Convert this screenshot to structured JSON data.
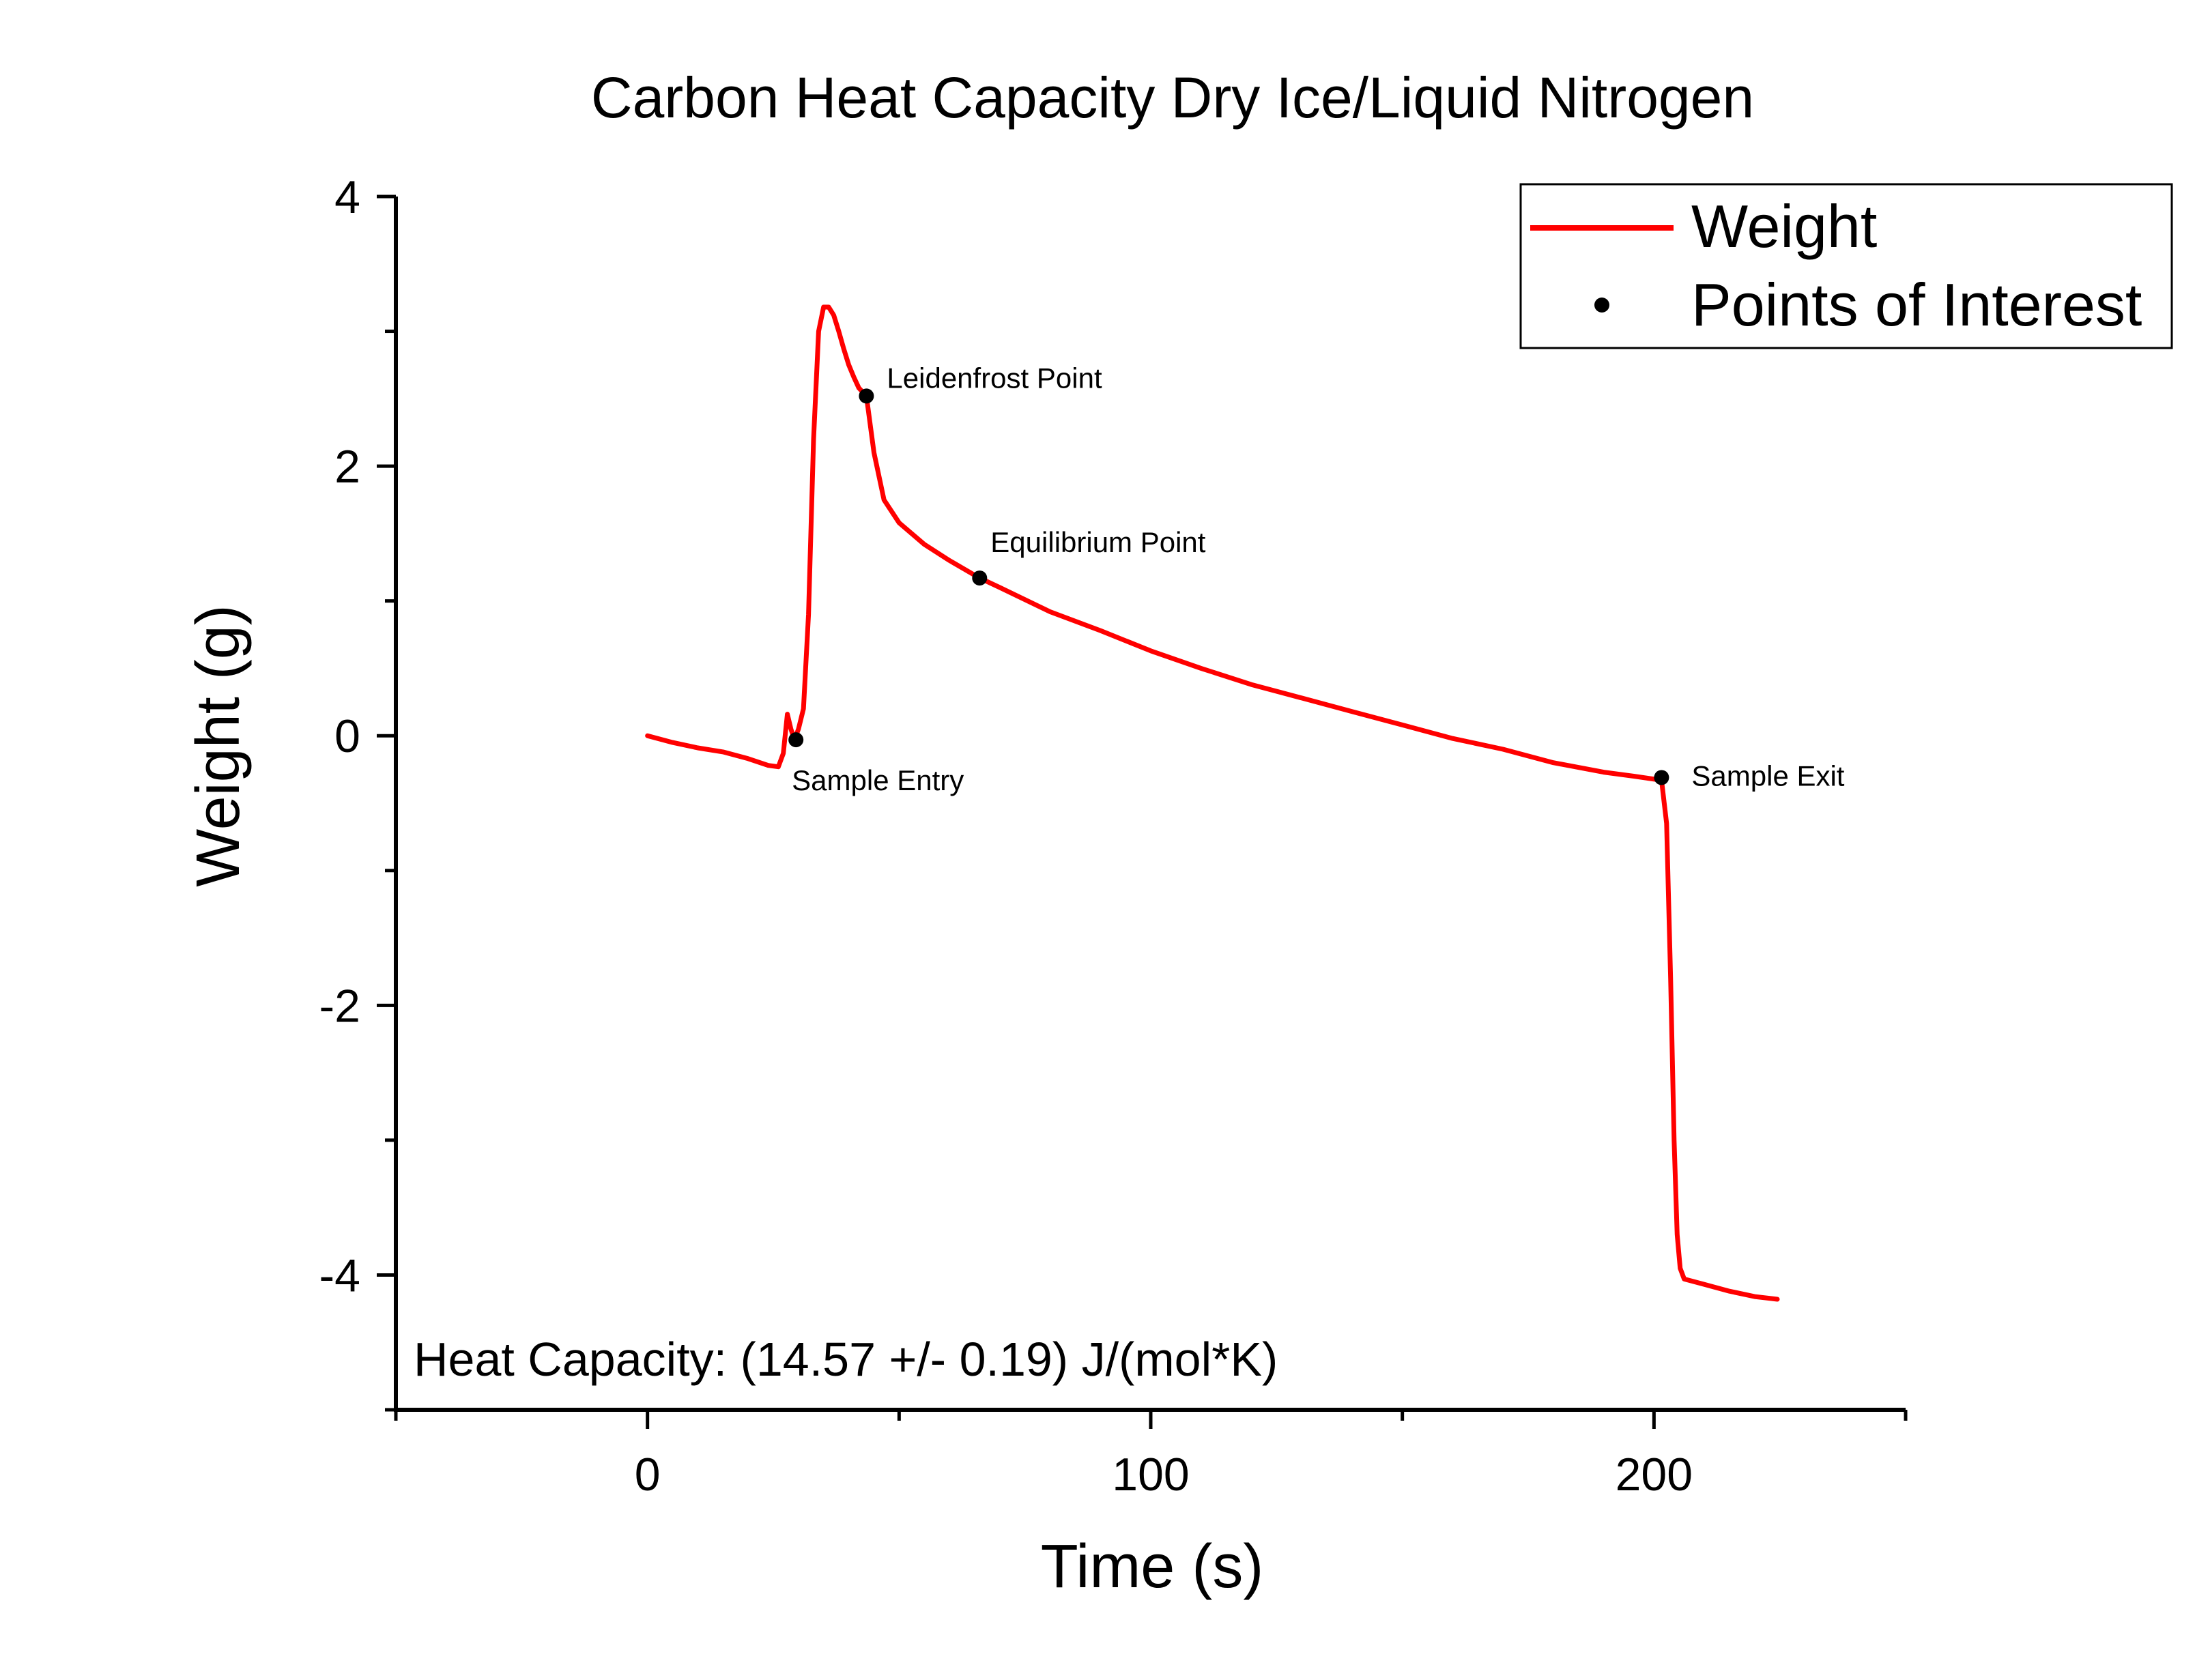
{
  "chart_data": {
    "type": "line",
    "title": "Carbon Heat Capacity Dry Ice/Liquid Nitrogen",
    "xlabel": "Time (s)",
    "ylabel": "Weight (g)",
    "xlim": [
      -50,
      250
    ],
    "ylim": [
      -5,
      4
    ],
    "xticks": [
      0,
      100,
      200
    ],
    "xtick_labels": [
      "0",
      "100",
      "200"
    ],
    "yticks": [
      -4,
      -2,
      0,
      2,
      4
    ],
    "ytick_labels": [
      "-4",
      "-2",
      "0",
      "2",
      "4"
    ],
    "grid": false,
    "legend_position": "top-right",
    "series": [
      {
        "name": "Weight",
        "color": "#ff0000",
        "x": [
          0,
          5,
          10,
          15,
          20,
          24,
          26,
          27,
          27.8,
          28.5,
          29.2,
          30,
          31,
          32,
          33,
          34,
          35,
          36,
          37,
          38,
          39,
          40,
          41,
          42,
          43.5,
          45,
          47,
          50,
          55,
          60,
          66,
          70,
          80,
          90,
          100,
          110,
          120,
          130,
          140,
          150,
          160,
          170,
          180,
          190,
          196,
          201.5,
          202.5,
          203.3,
          204,
          204.6,
          205.2,
          206,
          210,
          215,
          220,
          224.5
        ],
        "y": [
          0.0,
          -0.05,
          -0.09,
          -0.12,
          -0.17,
          -0.22,
          -0.23,
          -0.13,
          0.16,
          0.05,
          -0.03,
          0.05,
          0.2,
          0.9,
          2.2,
          3.0,
          3.18,
          3.18,
          3.12,
          3.0,
          2.87,
          2.75,
          2.66,
          2.58,
          2.52,
          2.1,
          1.75,
          1.58,
          1.42,
          1.3,
          1.17,
          1.1,
          0.92,
          0.78,
          0.63,
          0.5,
          0.38,
          0.28,
          0.18,
          0.08,
          -0.02,
          -0.1,
          -0.2,
          -0.27,
          -0.3,
          -0.33,
          -0.65,
          -1.8,
          -3.0,
          -3.7,
          -3.95,
          -4.03,
          -4.07,
          -4.12,
          -4.16,
          -4.18
        ]
      },
      {
        "name": "Points of Interest",
        "color": "#000000",
        "points": [
          {
            "x": 29.5,
            "y": -0.03,
            "label": "Sample Entry"
          },
          {
            "x": 43.5,
            "y": 2.52,
            "label": "Leidenfrost Point"
          },
          {
            "x": 66,
            "y": 1.17,
            "label": "Equilibrium Point"
          },
          {
            "x": 201.5,
            "y": -0.31,
            "label": "Sample Exit"
          }
        ]
      }
    ],
    "annotation": "Heat Capacity: (14.57 +/- 0.19) J/(mol*K)"
  }
}
